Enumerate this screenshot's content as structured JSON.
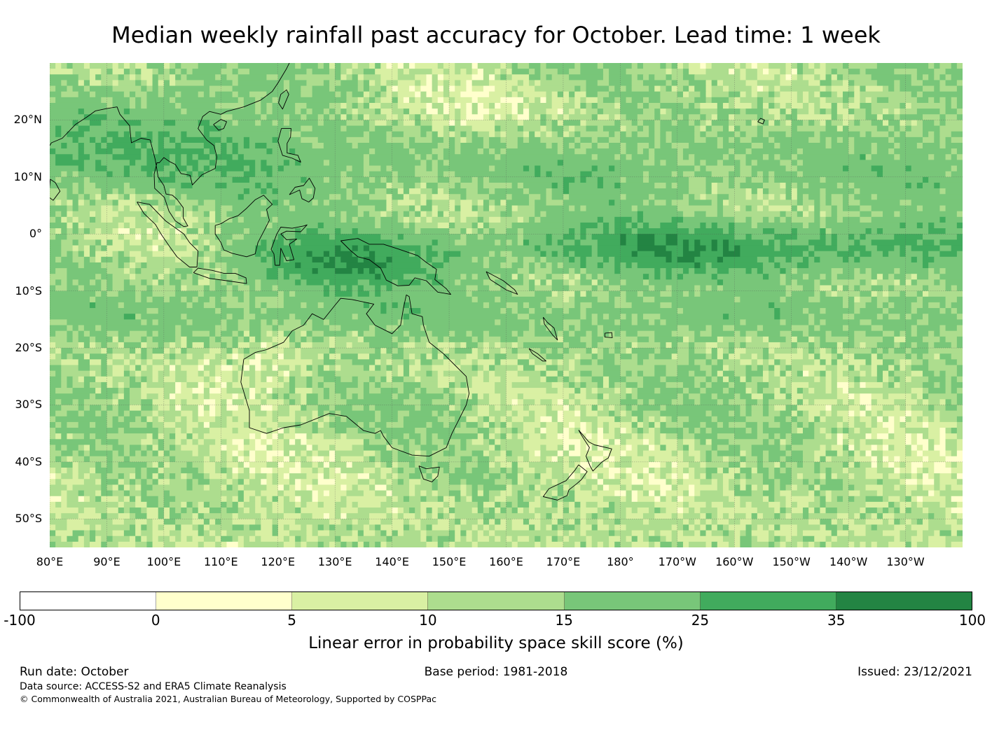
{
  "title": "Median weekly rainfall past accuracy for October. Lead time: 1 week",
  "map": {
    "region": "Indian Ocean, Maritime Continent, Australia and South-West Pacific",
    "lon_range_east": [
      80,
      240
    ],
    "lat_range": [
      -55,
      30
    ],
    "lat_labels": [
      {
        "lat": 20,
        "text": "20°N"
      },
      {
        "lat": 10,
        "text": "10°N"
      },
      {
        "lat": 0,
        "text": "0°"
      },
      {
        "lat": -10,
        "text": "10°S"
      },
      {
        "lat": -20,
        "text": "20°S"
      },
      {
        "lat": -30,
        "text": "30°S"
      },
      {
        "lat": -40,
        "text": "40°S"
      },
      {
        "lat": -50,
        "text": "50°S"
      }
    ],
    "lon_labels": [
      {
        "lon": 80,
        "text": "80°E"
      },
      {
        "lon": 90,
        "text": "90°E"
      },
      {
        "lon": 100,
        "text": "100°E"
      },
      {
        "lon": 110,
        "text": "110°E"
      },
      {
        "lon": 120,
        "text": "120°E"
      },
      {
        "lon": 130,
        "text": "130°E"
      },
      {
        "lon": 140,
        "text": "140°E"
      },
      {
        "lon": 150,
        "text": "150°E"
      },
      {
        "lon": 160,
        "text": "160°E"
      },
      {
        "lon": 170,
        "text": "170°E"
      },
      {
        "lon": 180,
        "text": "180°"
      },
      {
        "lon": 190,
        "text": "170°W"
      },
      {
        "lon": 200,
        "text": "160°W"
      },
      {
        "lon": 210,
        "text": "150°W"
      },
      {
        "lon": 220,
        "text": "140°W"
      },
      {
        "lon": 230,
        "text": "130°W"
      }
    ],
    "skill_bands_note": "highest skill along equatorial Pacific band and Maritime Continent"
  },
  "colorbar": {
    "label": "Linear error in probability space skill score (%)",
    "ticks": [
      "-100",
      "0",
      "5",
      "10",
      "15",
      "25",
      "35",
      "100"
    ],
    "colors": [
      "#ffffff",
      "#ffffcc",
      "#d9f0a3",
      "#addd8e",
      "#78c679",
      "#41ab5d",
      "#238443"
    ]
  },
  "footer": {
    "run_date": "Run date: October",
    "base_period": "Base period: 1981-2018",
    "issued": "Issued: 23/12/2021",
    "data_source": "Data source: ACCESS-S2 and ERA5 Climate Reanalysis",
    "copyright": "© Commonwealth of Australia 2021, Australian Bureau of Meteorology, Supported by COSPPac"
  }
}
